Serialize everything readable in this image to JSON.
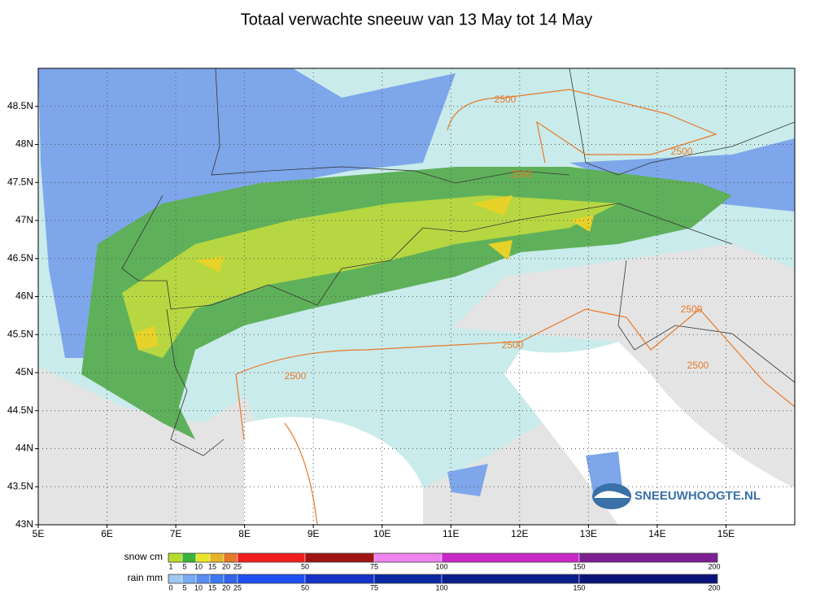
{
  "header": {
    "title": "Totaal verwachte sneeuw van 13 May tot 14 May"
  },
  "map": {
    "xlim": [
      5,
      16
    ],
    "ylim": [
      43,
      49
    ],
    "xticks": [
      {
        "value": 5,
        "label": "5E"
      },
      {
        "value": 6,
        "label": "6E"
      },
      {
        "value": 7,
        "label": "7E"
      },
      {
        "value": 8,
        "label": "8E"
      },
      {
        "value": 9,
        "label": "9E"
      },
      {
        "value": 10,
        "label": "10E"
      },
      {
        "value": 11,
        "label": "11E"
      },
      {
        "value": 12,
        "label": "12E"
      },
      {
        "value": 13,
        "label": "13E"
      },
      {
        "value": 14,
        "label": "14E"
      },
      {
        "value": 15,
        "label": "15E"
      }
    ],
    "yticks": [
      {
        "value": 43,
        "label": "43N"
      },
      {
        "value": 43.5,
        "label": "43.5N"
      },
      {
        "value": 44,
        "label": "44N"
      },
      {
        "value": 44.5,
        "label": "44.5N"
      },
      {
        "value": 45,
        "label": "45N"
      },
      {
        "value": 45.5,
        "label": "45.5N"
      },
      {
        "value": 46,
        "label": "46N"
      },
      {
        "value": 46.5,
        "label": "46.5N"
      },
      {
        "value": 47,
        "label": "47N"
      },
      {
        "value": 47.5,
        "label": "47.5N"
      },
      {
        "value": 48,
        "label": "48N"
      },
      {
        "value": 48.5,
        "label": "48.5N"
      }
    ],
    "grid": true,
    "contour_labels": [
      "2500",
      "2500",
      "2500",
      "2500",
      "2500",
      "2500",
      "2500"
    ],
    "logo": "SNEEUWHOOGTE.NL"
  },
  "legend": {
    "snow": {
      "label": "snow cm",
      "ticks": [
        "1",
        "5",
        "10",
        "15",
        "20",
        "25",
        "50",
        "75",
        "100",
        "150",
        "200"
      ],
      "colors": [
        "#b4dc2c",
        "#3cb43c",
        "#e6e628",
        "#e6b428",
        "#e67828",
        "#f01e1e",
        "#a01414",
        "#ee82ee",
        "#c828c8",
        "#7d1e91"
      ]
    },
    "rain": {
      "label": "rain mm",
      "ticks": [
        "0",
        "5",
        "10",
        "15",
        "20",
        "25",
        "50",
        "75",
        "100",
        "150",
        "200"
      ],
      "colors": [
        "#a0c8f0",
        "#78aaf0",
        "#5a8cf0",
        "#3c78f0",
        "#3264e6",
        "#1e50f0",
        "#1432c8",
        "#0a28a0",
        "#0a1e8c",
        "#0a1478"
      ]
    }
  }
}
